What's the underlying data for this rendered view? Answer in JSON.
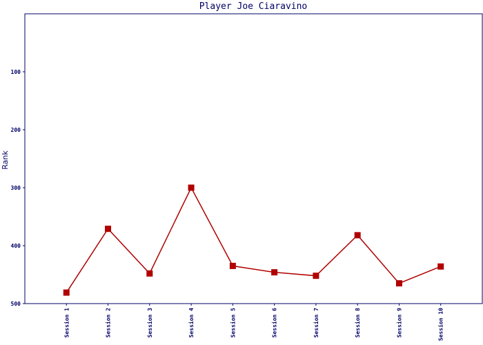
{
  "chart_data": {
    "type": "line",
    "title": "Player Joe Ciaravino",
    "y_label": "Rank",
    "categories": [
      "Session 1",
      "Session 2",
      "Session 3",
      "Session 4",
      "Session 5",
      "Session 6",
      "Session 7",
      "Session 8",
      "Session 9",
      "Session 10"
    ],
    "series": [
      {
        "name": "Rank",
        "color": "#b00000",
        "values": [
          481,
          371,
          448,
          300,
          435,
          446,
          452,
          382,
          465,
          436
        ]
      }
    ],
    "ylim": [
      500,
      0
    ],
    "yticks": [
      100,
      200,
      300,
      400,
      500
    ],
    "inverted": true
  }
}
